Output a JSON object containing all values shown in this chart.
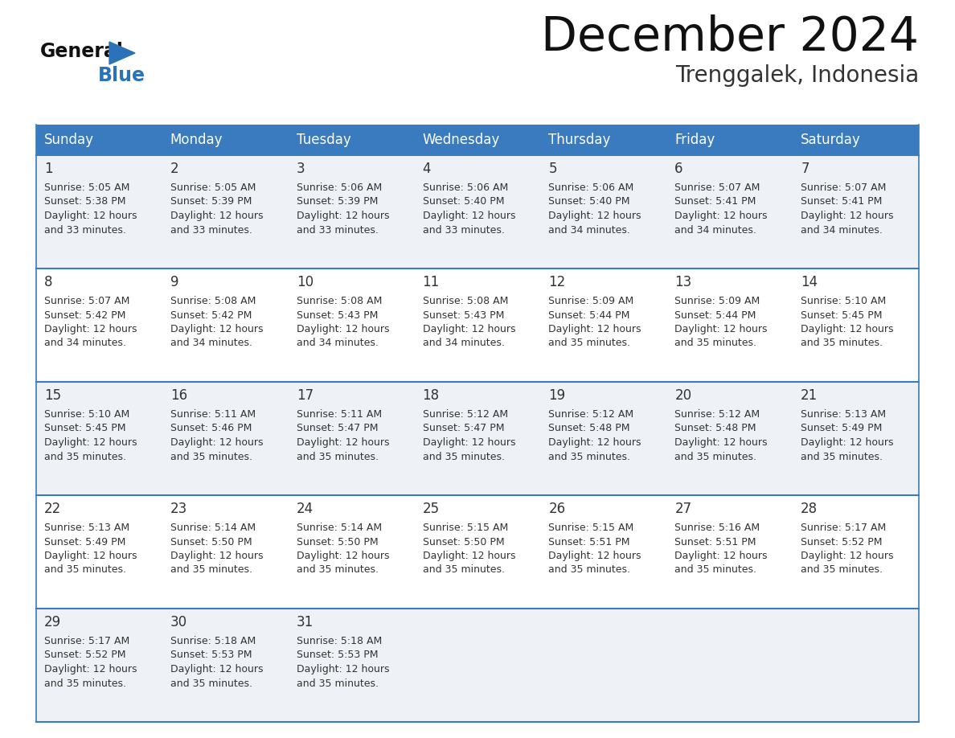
{
  "title": "December 2024",
  "subtitle": "Trenggalek, Indonesia",
  "header_bg_color": "#3a7bbf",
  "header_text_color": "#ffffff",
  "days_of_week": [
    "Sunday",
    "Monday",
    "Tuesday",
    "Wednesday",
    "Thursday",
    "Friday",
    "Saturday"
  ],
  "row_bg_colors": [
    "#eef2f7",
    "#ffffff"
  ],
  "cell_border_color": "#3a7bbf",
  "text_color": "#333333",
  "title_color": "#111111",
  "subtitle_color": "#333333",
  "logo_general_color": "#111111",
  "logo_blue_color": "#2b72b8",
  "calendar_data": [
    [
      {
        "day": 1,
        "sunrise": "5:05 AM",
        "sunset": "5:38 PM",
        "daylight": "12 hours and 33 minutes."
      },
      {
        "day": 2,
        "sunrise": "5:05 AM",
        "sunset": "5:39 PM",
        "daylight": "12 hours and 33 minutes."
      },
      {
        "day": 3,
        "sunrise": "5:06 AM",
        "sunset": "5:39 PM",
        "daylight": "12 hours and 33 minutes."
      },
      {
        "day": 4,
        "sunrise": "5:06 AM",
        "sunset": "5:40 PM",
        "daylight": "12 hours and 33 minutes."
      },
      {
        "day": 5,
        "sunrise": "5:06 AM",
        "sunset": "5:40 PM",
        "daylight": "12 hours and 34 minutes."
      },
      {
        "day": 6,
        "sunrise": "5:07 AM",
        "sunset": "5:41 PM",
        "daylight": "12 hours and 34 minutes."
      },
      {
        "day": 7,
        "sunrise": "5:07 AM",
        "sunset": "5:41 PM",
        "daylight": "12 hours and 34 minutes."
      }
    ],
    [
      {
        "day": 8,
        "sunrise": "5:07 AM",
        "sunset": "5:42 PM",
        "daylight": "12 hours and 34 minutes."
      },
      {
        "day": 9,
        "sunrise": "5:08 AM",
        "sunset": "5:42 PM",
        "daylight": "12 hours and 34 minutes."
      },
      {
        "day": 10,
        "sunrise": "5:08 AM",
        "sunset": "5:43 PM",
        "daylight": "12 hours and 34 minutes."
      },
      {
        "day": 11,
        "sunrise": "5:08 AM",
        "sunset": "5:43 PM",
        "daylight": "12 hours and 34 minutes."
      },
      {
        "day": 12,
        "sunrise": "5:09 AM",
        "sunset": "5:44 PM",
        "daylight": "12 hours and 35 minutes."
      },
      {
        "day": 13,
        "sunrise": "5:09 AM",
        "sunset": "5:44 PM",
        "daylight": "12 hours and 35 minutes."
      },
      {
        "day": 14,
        "sunrise": "5:10 AM",
        "sunset": "5:45 PM",
        "daylight": "12 hours and 35 minutes."
      }
    ],
    [
      {
        "day": 15,
        "sunrise": "5:10 AM",
        "sunset": "5:45 PM",
        "daylight": "12 hours and 35 minutes."
      },
      {
        "day": 16,
        "sunrise": "5:11 AM",
        "sunset": "5:46 PM",
        "daylight": "12 hours and 35 minutes."
      },
      {
        "day": 17,
        "sunrise": "5:11 AM",
        "sunset": "5:47 PM",
        "daylight": "12 hours and 35 minutes."
      },
      {
        "day": 18,
        "sunrise": "5:12 AM",
        "sunset": "5:47 PM",
        "daylight": "12 hours and 35 minutes."
      },
      {
        "day": 19,
        "sunrise": "5:12 AM",
        "sunset": "5:48 PM",
        "daylight": "12 hours and 35 minutes."
      },
      {
        "day": 20,
        "sunrise": "5:12 AM",
        "sunset": "5:48 PM",
        "daylight": "12 hours and 35 minutes."
      },
      {
        "day": 21,
        "sunrise": "5:13 AM",
        "sunset": "5:49 PM",
        "daylight": "12 hours and 35 minutes."
      }
    ],
    [
      {
        "day": 22,
        "sunrise": "5:13 AM",
        "sunset": "5:49 PM",
        "daylight": "12 hours and 35 minutes."
      },
      {
        "day": 23,
        "sunrise": "5:14 AM",
        "sunset": "5:50 PM",
        "daylight": "12 hours and 35 minutes."
      },
      {
        "day": 24,
        "sunrise": "5:14 AM",
        "sunset": "5:50 PM",
        "daylight": "12 hours and 35 minutes."
      },
      {
        "day": 25,
        "sunrise": "5:15 AM",
        "sunset": "5:50 PM",
        "daylight": "12 hours and 35 minutes."
      },
      {
        "day": 26,
        "sunrise": "5:15 AM",
        "sunset": "5:51 PM",
        "daylight": "12 hours and 35 minutes."
      },
      {
        "day": 27,
        "sunrise": "5:16 AM",
        "sunset": "5:51 PM",
        "daylight": "12 hours and 35 minutes."
      },
      {
        "day": 28,
        "sunrise": "5:17 AM",
        "sunset": "5:52 PM",
        "daylight": "12 hours and 35 minutes."
      }
    ],
    [
      {
        "day": 29,
        "sunrise": "5:17 AM",
        "sunset": "5:52 PM",
        "daylight": "12 hours and 35 minutes."
      },
      {
        "day": 30,
        "sunrise": "5:18 AM",
        "sunset": "5:53 PM",
        "daylight": "12 hours and 35 minutes."
      },
      {
        "day": 31,
        "sunrise": "5:18 AM",
        "sunset": "5:53 PM",
        "daylight": "12 hours and 35 minutes."
      },
      null,
      null,
      null,
      null
    ]
  ]
}
